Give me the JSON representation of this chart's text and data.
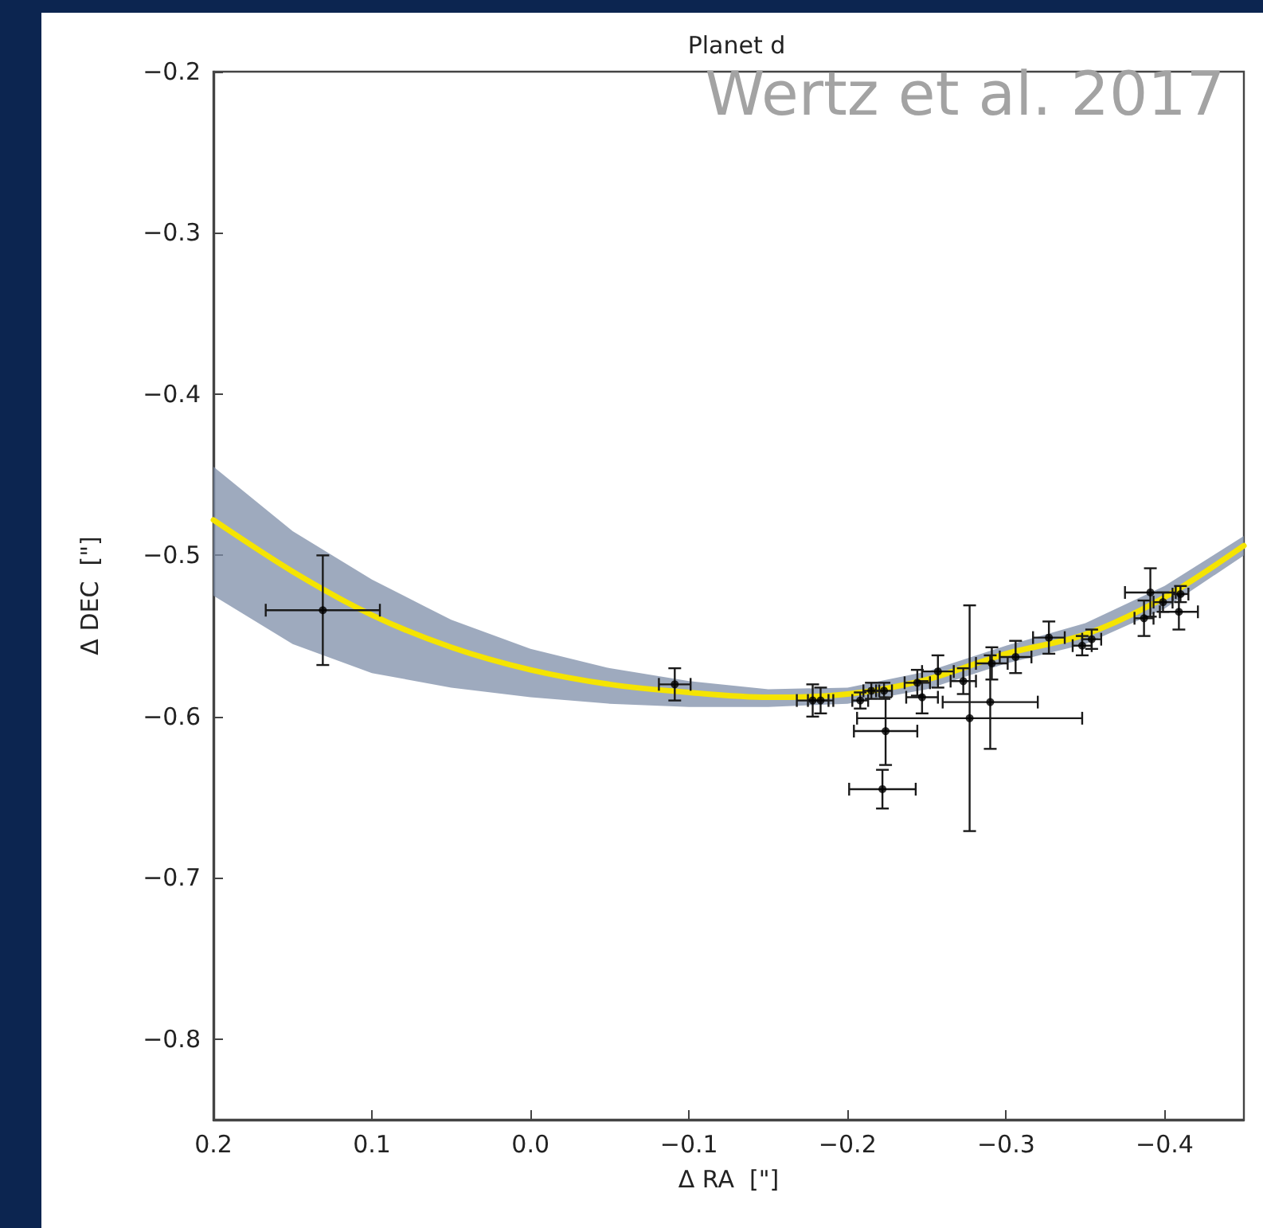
{
  "chart_data": {
    "type": "scatter",
    "title": "Planet d",
    "xlabel": "Δ RA  [\"]",
    "ylabel": "Δ DEC  [\"]",
    "annotations": [
      "Wertz et al. 2017"
    ],
    "xlim": [
      0.2,
      -0.45
    ],
    "xticks": [
      0.2,
      0.1,
      {
        "value": 0,
        "label": "0.0"
      },
      -0.1,
      -0.2,
      -0.3,
      -0.4
    ],
    "ylim": [
      -0.85,
      -0.2
    ],
    "yticks": [
      -0.8,
      -0.7,
      -0.6,
      -0.5,
      -0.4,
      -0.3,
      -0.2
    ],
    "grid": false,
    "series": [
      {
        "type": "line",
        "color": "#f5e400",
        "marker": "none",
        "line_style": "solid",
        "x": [
          0.2,
          0.15,
          0.1,
          0.05,
          0.0,
          -0.05,
          -0.1,
          -0.15,
          -0.2,
          -0.25,
          -0.3,
          -0.35,
          -0.4,
          -0.45
        ],
        "values": [
          -0.478,
          -0.51,
          -0.537,
          -0.557,
          -0.571,
          -0.58,
          -0.585,
          -0.588,
          -0.586,
          -0.577,
          -0.561,
          -0.549,
          -0.526,
          -0.494
        ],
        "upper": [
          -0.445,
          -0.485,
          -0.515,
          -0.54,
          -0.558,
          -0.57,
          -0.578,
          -0.583,
          -0.582,
          -0.572,
          -0.556,
          -0.542,
          -0.519,
          -0.488
        ],
        "lower": [
          -0.525,
          -0.555,
          -0.573,
          -0.582,
          -0.588,
          -0.592,
          -0.594,
          -0.594,
          -0.592,
          -0.583,
          -0.567,
          -0.555,
          -0.533,
          -0.5
        ]
      },
      {
        "type": "scatter",
        "color": "#000000",
        "marker": "circle",
        "x": [
          0.131,
          -0.091,
          -0.178,
          -0.183,
          -0.208,
          -0.215,
          -0.223,
          -0.224,
          -0.222,
          -0.244,
          -0.247,
          -0.257,
          -0.273,
          -0.277,
          -0.29,
          -0.291,
          -0.306,
          -0.327,
          -0.348,
          -0.354,
          -0.391,
          -0.387,
          -0.399,
          -0.41,
          -0.409
        ],
        "values": [
          -0.534,
          -0.58,
          -0.59,
          -0.59,
          -0.59,
          -0.584,
          -0.584,
          -0.609,
          -0.645,
          -0.579,
          -0.588,
          -0.572,
          -0.578,
          -0.601,
          -0.591,
          -0.567,
          -0.563,
          -0.551,
          -0.556,
          -0.552,
          -0.523,
          -0.539,
          -0.529,
          -0.524,
          -0.535
        ],
        "errors": [
          0.034,
          0.01,
          0.01,
          0.008,
          0.005,
          0.005,
          0.005,
          0.021,
          0.012,
          0.008,
          0.01,
          0.01,
          0.008,
          0.07,
          0.029,
          0.01,
          0.01,
          0.01,
          0.006,
          0.006,
          0.015,
          0.011,
          0.006,
          0.005,
          0.011
        ],
        "xerrors": [
          0.036,
          0.01,
          0.01,
          0.008,
          0.005,
          0.005,
          0.005,
          0.02,
          0.021,
          0.008,
          0.01,
          0.01,
          0.008,
          0.071,
          0.03,
          0.01,
          0.01,
          0.01,
          0.006,
          0.006,
          0.016,
          0.006,
          0.006,
          0.005,
          0.012
        ]
      }
    ]
  }
}
